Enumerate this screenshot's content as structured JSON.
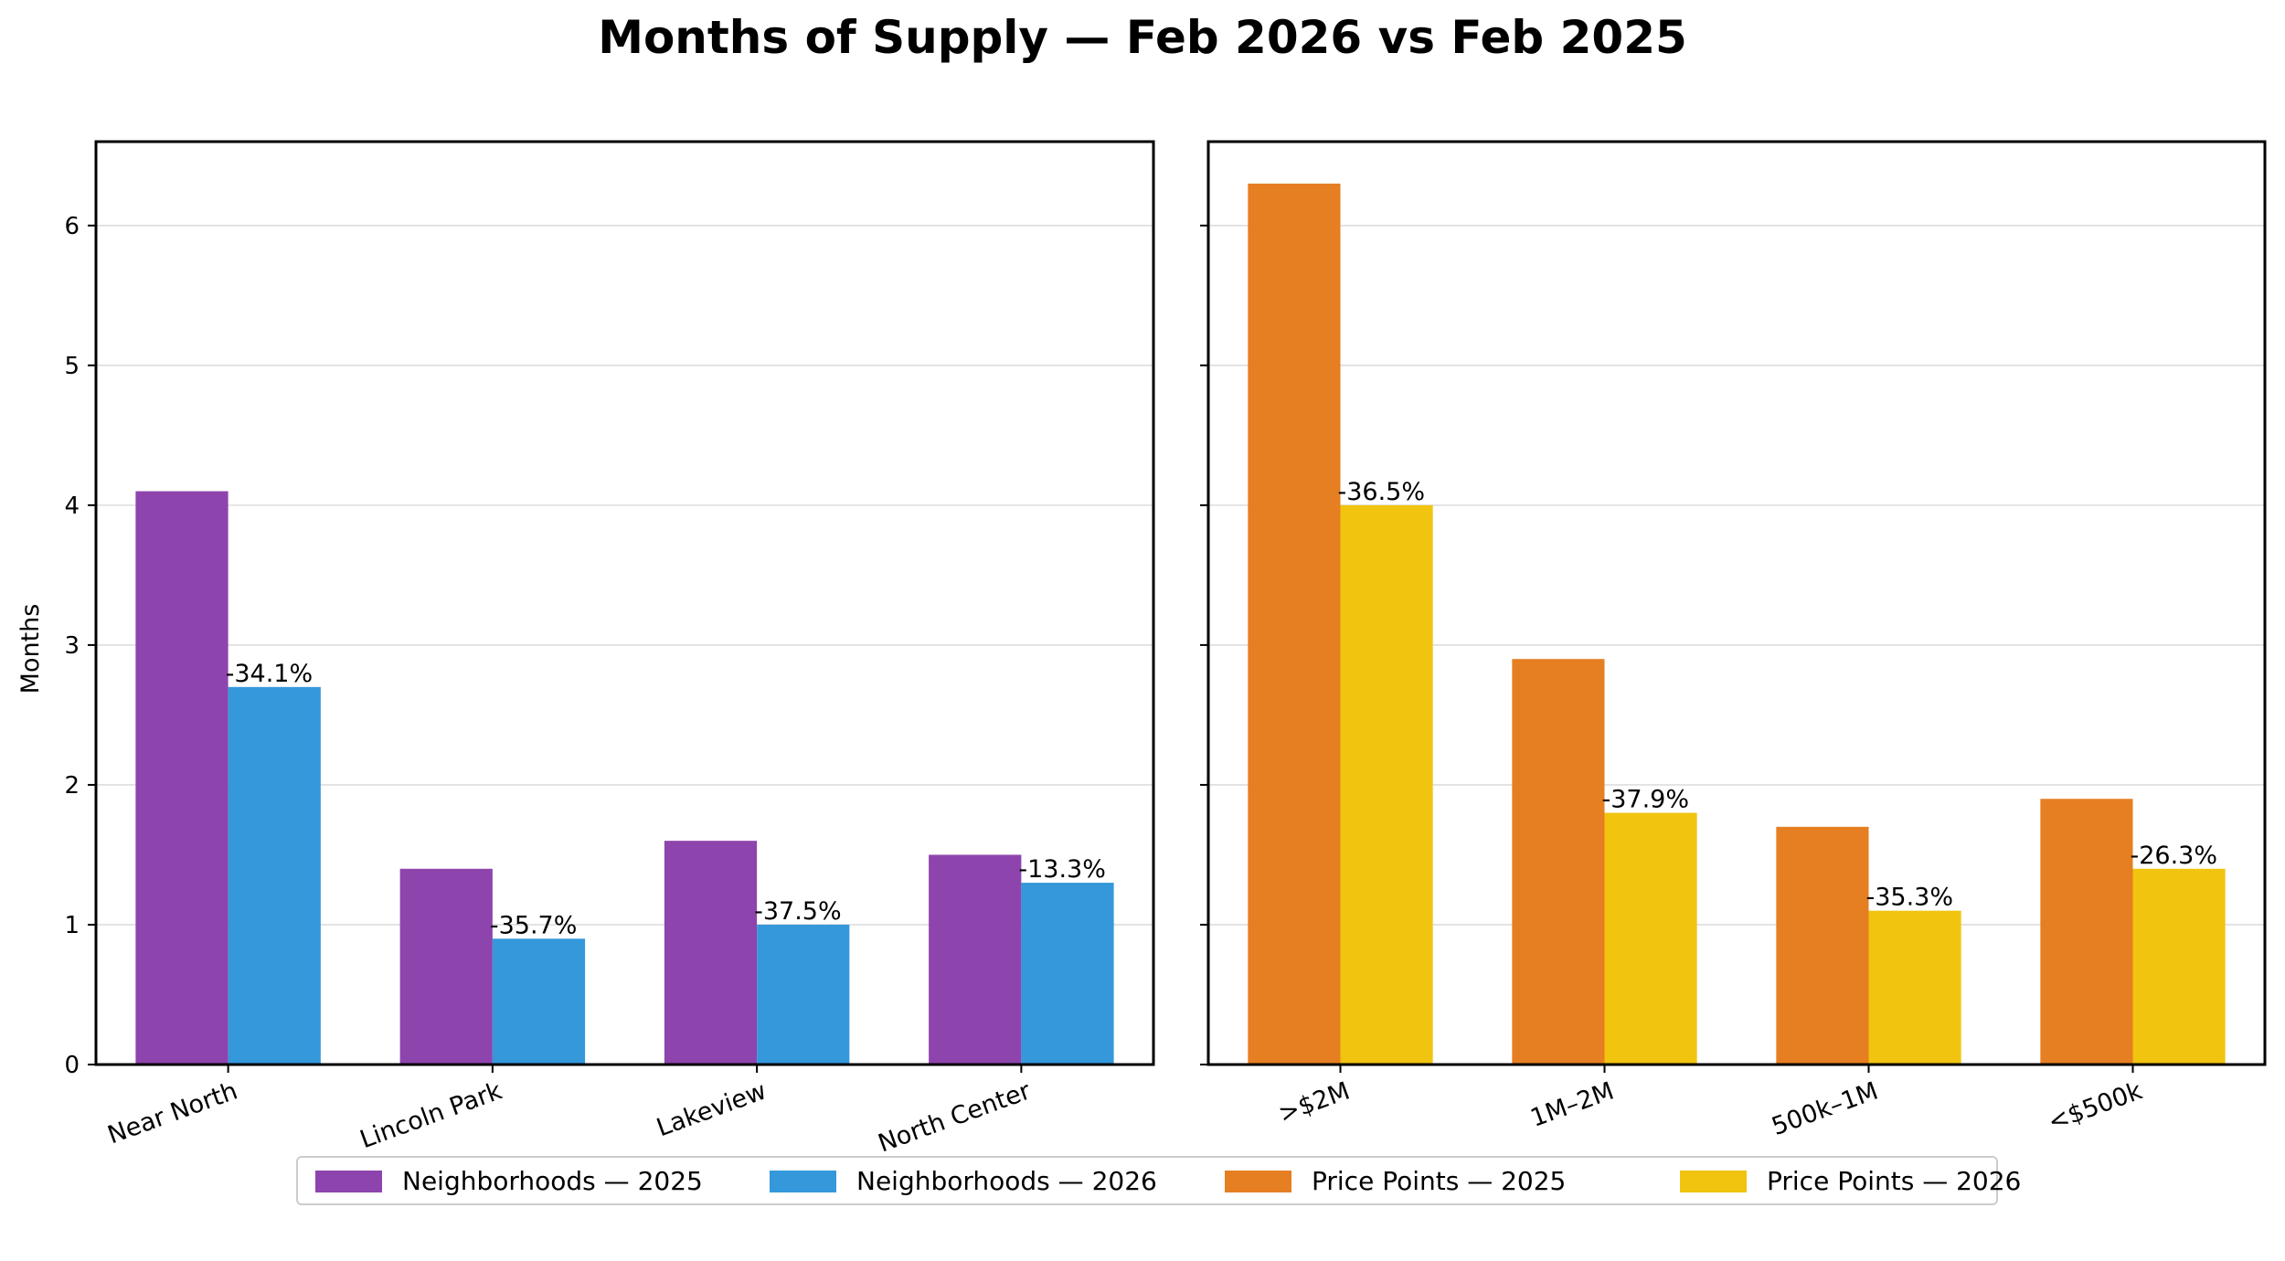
{
  "chart_data": [
    {
      "type": "bar",
      "panel": "left",
      "title": "Months of Supply — Feb 2026 vs Feb 2025",
      "ylabel": "Months",
      "xlabel": "",
      "ylim": [
        0,
        6.6
      ],
      "yticks": [
        0,
        1,
        2,
        3,
        4,
        5,
        6
      ],
      "grid": "horizontal",
      "categories": [
        "Near North",
        "Lincoln Park",
        "Lakeview",
        "North Center"
      ],
      "series": [
        {
          "name": "Neighborhoods — 2025",
          "color": "#8e44ad",
          "values": [
            4.1,
            1.4,
            1.6,
            1.5
          ]
        },
        {
          "name": "Neighborhoods — 2026",
          "color": "#3498db",
          "values": [
            2.7,
            0.9,
            1.0,
            1.3
          ]
        }
      ],
      "annotations": [
        "-34.1%",
        "-35.7%",
        "-37.5%",
        "-13.3%"
      ]
    },
    {
      "type": "bar",
      "panel": "right",
      "ylim": [
        0,
        6.6
      ],
      "yticks": [
        0,
        1,
        2,
        3,
        4,
        5,
        6
      ],
      "grid": "horizontal",
      "categories": [
        ">$2M",
        "1M–2M",
        "500k–1M",
        "<$500k"
      ],
      "series": [
        {
          "name": "Price Points — 2025",
          "color": "#e67e22",
          "values": [
            6.3,
            2.9,
            1.7,
            1.9
          ]
        },
        {
          "name": "Price Points — 2026",
          "color": "#f1c40f",
          "values": [
            4.0,
            1.8,
            1.1,
            1.4
          ]
        }
      ],
      "annotations": [
        "-36.5%",
        "-37.9%",
        "-35.3%",
        "-26.3%"
      ]
    }
  ],
  "legend": {
    "placement": "bottom-center",
    "items": [
      {
        "label": "Neighborhoods — 2025",
        "color": "#8e44ad"
      },
      {
        "label": "Neighborhoods — 2026",
        "color": "#3498db"
      },
      {
        "label": "Price Points — 2025",
        "color": "#e67e22"
      },
      {
        "label": "Price Points — 2026",
        "color": "#f1c40f"
      }
    ]
  }
}
